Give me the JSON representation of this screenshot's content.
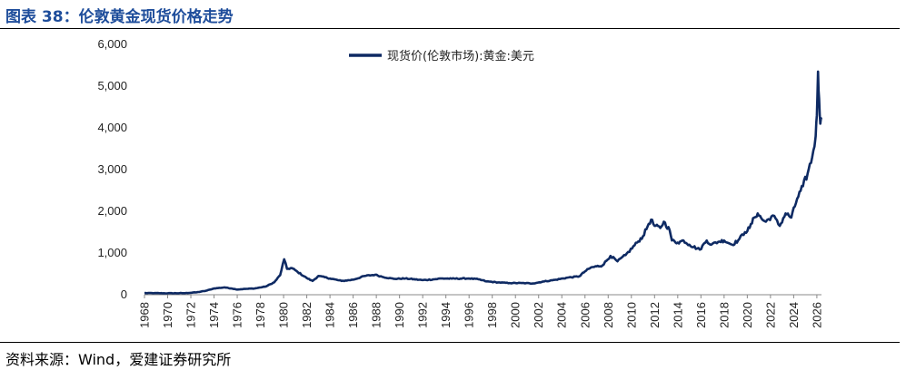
{
  "figure": {
    "title": "图表 38：伦敦黄金现货价格走势",
    "source": "资料来源：Wind，爱建证券研究所"
  },
  "colors": {
    "title": "#1e4d9b",
    "series": "#0e2a63"
  },
  "chart_data": {
    "type": "line",
    "title": "",
    "xlabel": "",
    "ylabel": "",
    "legend_position": "top",
    "grid": false,
    "ylim": [
      0,
      6000
    ],
    "xlim": [
      1968,
      2026.4
    ],
    "y_ticks": [
      0,
      1000,
      2000,
      3000,
      4000,
      5000,
      6000
    ],
    "y_tick_labels": [
      "0",
      "1,000",
      "2,000",
      "3,000",
      "4,000",
      "5,000",
      "6,000"
    ],
    "x_tick_labels": [
      "1968",
      "1970",
      "1972",
      "1974",
      "1976",
      "1978",
      "1980",
      "1982",
      "1984",
      "1986",
      "1988",
      "1990",
      "1992",
      "1994",
      "1996",
      "1998",
      "2000",
      "2002",
      "2004",
      "2006",
      "2008",
      "2010",
      "2012",
      "2014",
      "2016",
      "2018",
      "2020",
      "2022",
      "2024",
      "2026"
    ],
    "series": [
      {
        "name": "现货价(伦敦市场):黄金:美元",
        "x": [
          1968.0,
          1970.0,
          1971.5,
          1972.5,
          1973.3,
          1974.0,
          1974.9,
          1975.5,
          1976.0,
          1976.7,
          1977.5,
          1978.5,
          1979.2,
          1979.7,
          1980.05,
          1980.3,
          1980.7,
          1981.2,
          1982.0,
          1982.5,
          1983.0,
          1984.0,
          1985.0,
          1986.0,
          1987.0,
          1987.9,
          1988.5,
          1989.5,
          1990.5,
          1992.0,
          1993.0,
          1993.6,
          1994.5,
          1996.0,
          1996.8,
          1997.5,
          1998.5,
          1999.5,
          2000.5,
          2001.5,
          2002.5,
          2003.5,
          2004.5,
          2005.5,
          2006.0,
          2006.5,
          2007.0,
          2007.5,
          2008.2,
          2008.8,
          2009.5,
          2010.5,
          2011.0,
          2011.5,
          2011.7,
          2012.0,
          2012.5,
          2012.8,
          2013.3,
          2013.5,
          2014.0,
          2014.5,
          2015.0,
          2015.9,
          2016.5,
          2016.9,
          2017.5,
          2018.0,
          2018.7,
          2019.2,
          2019.8,
          2020.2,
          2020.6,
          2020.9,
          2021.3,
          2021.6,
          2022.2,
          2022.8,
          2023.3,
          2023.8,
          2024.3,
          2024.8,
          2025.2,
          2025.6,
          2025.9,
          2026.0,
          2026.1,
          2026.2,
          2026.3,
          2026.4
        ],
        "y": [
          40,
          35,
          38,
          58,
          95,
          150,
          175,
          150,
          125,
          140,
          150,
          200,
          300,
          470,
          850,
          620,
          640,
          550,
          400,
          330,
          450,
          390,
          330,
          360,
          450,
          480,
          430,
          380,
          390,
          350,
          370,
          390,
          385,
          390,
          370,
          320,
          295,
          280,
          280,
          270,
          320,
          360,
          410,
          440,
          560,
          650,
          680,
          700,
          930,
          800,
          950,
          1250,
          1400,
          1700,
          1800,
          1650,
          1600,
          1750,
          1550,
          1300,
          1250,
          1300,
          1200,
          1080,
          1300,
          1200,
          1270,
          1300,
          1200,
          1300,
          1500,
          1600,
          1850,
          1950,
          1800,
          1750,
          1900,
          1650,
          1950,
          1850,
          2300,
          2600,
          2900,
          3300,
          3800,
          4300,
          5350,
          4700,
          4100,
          4200
        ]
      }
    ]
  }
}
